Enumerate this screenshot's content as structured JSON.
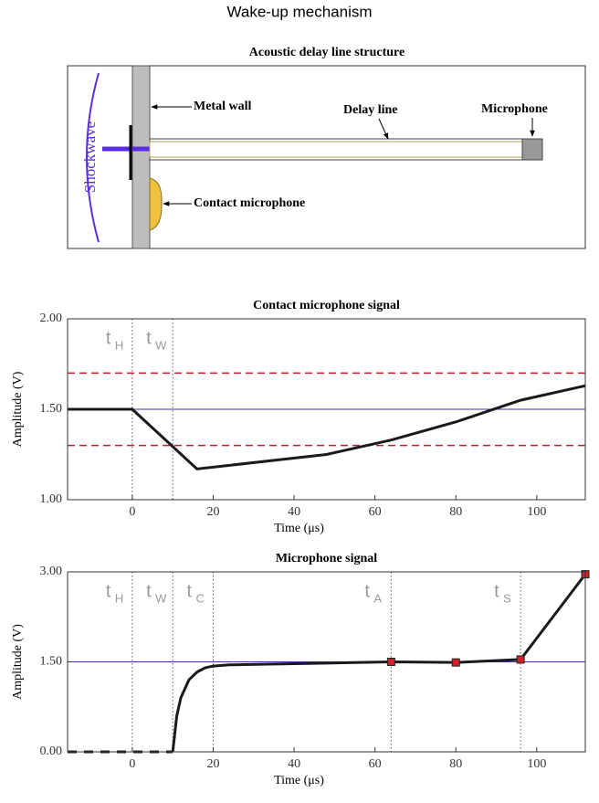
{
  "title": "Wake-up mechanism",
  "diagram": {
    "title": "Acoustic delay line structure",
    "labels": {
      "shockwave": "Shockwave",
      "metal_wall": "Metal wall",
      "delay_line": "Delay line",
      "microphone": "Microphone",
      "contact_microphone": "Contact microphone"
    }
  },
  "chart_data": [
    {
      "type": "line",
      "title": "Contact microphone signal",
      "x_label": "Time (μs)",
      "y_label": "Amplitude (V)",
      "xlim": [
        -16,
        112
      ],
      "xticks": [
        0,
        20,
        40,
        60,
        80,
        100
      ],
      "ylim": [
        1,
        2
      ],
      "yticks": [
        {
          "value": 1,
          "label": "1.00"
        },
        {
          "value": 1.5,
          "label": "1.50"
        },
        {
          "value": 2,
          "label": "2.00"
        }
      ],
      "hlines": [
        {
          "y": 1.7,
          "color": "#c0202a",
          "style": "dashed"
        },
        {
          "y": 1.5,
          "color": "#3a3aa0",
          "style": "solid"
        },
        {
          "y": 1.3,
          "color": "#c0202a",
          "style": "dashed"
        }
      ],
      "vmarkers": [
        {
          "x": 0,
          "label": "t",
          "sub": "H"
        },
        {
          "x": 10,
          "label": "t",
          "sub": "W"
        }
      ],
      "series": [
        {
          "color": "#1a1a1a",
          "style": "solid",
          "x": [
            -16,
            0,
            16,
            48,
            64,
            80,
            96,
            112
          ],
          "values": [
            1.5,
            1.5,
            1.17,
            1.25,
            1.33,
            1.43,
            1.55,
            1.63
          ]
        }
      ]
    },
    {
      "type": "line",
      "title": "Microphone signal",
      "x_label": "Time (μs)",
      "y_label": "Amplitude (V)",
      "xlim": [
        -16,
        112
      ],
      "xticks": [
        0,
        20,
        40,
        60,
        80,
        100
      ],
      "ylim": [
        0,
        3
      ],
      "yticks": [
        {
          "value": 0,
          "label": "0.00"
        },
        {
          "value": 1.5,
          "label": "1.50"
        },
        {
          "value": 3,
          "label": "3.00"
        }
      ],
      "hlines": [
        {
          "y": 1.5,
          "color": "#3a3aa0",
          "style": "solid"
        }
      ],
      "vmarkers": [
        {
          "x": 0,
          "label": "t",
          "sub": "H"
        },
        {
          "x": 10,
          "label": "t",
          "sub": "W"
        },
        {
          "x": 20,
          "label": "t",
          "sub": "C"
        },
        {
          "x": 64,
          "label": "t",
          "sub": "A"
        },
        {
          "x": 96,
          "label": "t",
          "sub": "S"
        }
      ],
      "series": [
        {
          "color": "#1a1a1a",
          "style": "dashed",
          "x": [
            -16,
            10
          ],
          "values": [
            0,
            0
          ]
        },
        {
          "color": "#1a1a1a",
          "style": "solid",
          "x": [
            10,
            11,
            12,
            14,
            16,
            18,
            20,
            24,
            32,
            48,
            64,
            80,
            96,
            112
          ],
          "values": [
            0,
            0.6,
            0.9,
            1.2,
            1.33,
            1.4,
            1.43,
            1.45,
            1.46,
            1.48,
            1.5,
            1.49,
            1.54,
            2.96
          ]
        },
        {
          "color": "#d0202a",
          "style": "none",
          "marker": "square",
          "x": [
            64,
            80,
            96,
            112
          ],
          "values": [
            1.5,
            1.49,
            1.54,
            2.96
          ]
        }
      ]
    }
  ]
}
